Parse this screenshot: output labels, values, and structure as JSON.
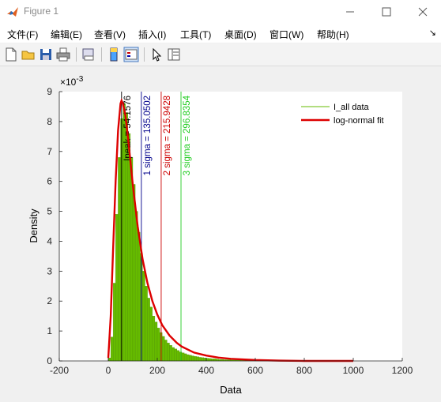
{
  "window": {
    "title": "Figure 1",
    "minimize_icon": "minimize-icon",
    "maximize_icon": "maximize-icon",
    "close_icon": "close-icon"
  },
  "menu": {
    "items": [
      "文件(F)",
      "编辑(E)",
      "查看(V)",
      "插入(I)",
      "工具(T)",
      "桌面(D)",
      "窗口(W)",
      "帮助(H)"
    ],
    "overflow_icon": "dock-arrow-icon"
  },
  "toolbar": {
    "icons": [
      "new-figure-icon",
      "open-file-icon",
      "save-icon",
      "print-icon",
      "print-preview-icon",
      "colorbar-icon",
      "legend-icon",
      "pointer-icon",
      "property-editor-icon"
    ]
  },
  "chart_data": {
    "type": "bar",
    "xlabel": "Data",
    "ylabel": "Density",
    "exponent_label": "×10",
    "exponent_power": "-3",
    "xlim": [
      -200,
      1200
    ],
    "ylim": [
      0,
      9
    ],
    "xticks": [
      "-200",
      "0",
      "200",
      "400",
      "600",
      "800",
      "1000",
      "1200"
    ],
    "yticks": [
      "0",
      "1",
      "2",
      "3",
      "4",
      "5",
      "6",
      "7",
      "8",
      "9"
    ],
    "legend_position": "top-right",
    "series": [
      {
        "name": "I_all data",
        "kind": "histogram",
        "color": "#66bb00",
        "bins": [
          [
            0,
            0.1
          ],
          [
            10,
            0.8
          ],
          [
            20,
            2.6
          ],
          [
            30,
            4.9
          ],
          [
            40,
            6.8
          ],
          [
            50,
            8.1
          ],
          [
            60,
            8.6
          ],
          [
            70,
            8.3
          ],
          [
            80,
            7.6
          ],
          [
            90,
            6.8
          ],
          [
            100,
            5.9
          ],
          [
            110,
            5.0
          ],
          [
            120,
            4.3
          ],
          [
            130,
            3.6
          ],
          [
            140,
            3.0
          ],
          [
            150,
            2.5
          ],
          [
            160,
            2.1
          ],
          [
            170,
            1.8
          ],
          [
            180,
            1.5
          ],
          [
            190,
            1.3
          ],
          [
            200,
            1.1
          ],
          [
            210,
            0.95
          ],
          [
            220,
            0.82
          ],
          [
            230,
            0.7
          ],
          [
            240,
            0.6
          ],
          [
            250,
            0.52
          ],
          [
            260,
            0.45
          ],
          [
            270,
            0.4
          ],
          [
            280,
            0.35
          ],
          [
            290,
            0.3
          ],
          [
            300,
            0.27
          ],
          [
            310,
            0.24
          ],
          [
            320,
            0.21
          ],
          [
            330,
            0.19
          ],
          [
            340,
            0.17
          ],
          [
            350,
            0.15
          ],
          [
            360,
            0.14
          ],
          [
            370,
            0.12
          ],
          [
            380,
            0.11
          ],
          [
            390,
            0.1
          ],
          [
            400,
            0.09
          ],
          [
            410,
            0.08
          ],
          [
            420,
            0.07
          ],
          [
            430,
            0.07
          ],
          [
            440,
            0.06
          ],
          [
            450,
            0.05
          ],
          [
            460,
            0.05
          ],
          [
            470,
            0.04
          ],
          [
            480,
            0.04
          ],
          [
            490,
            0.04
          ],
          [
            500,
            0.03
          ],
          [
            520,
            0.03
          ],
          [
            540,
            0.02
          ],
          [
            560,
            0.02
          ],
          [
            580,
            0.02
          ],
          [
            600,
            0.01
          ],
          [
            650,
            0.01
          ],
          [
            700,
            0.01
          ]
        ]
      },
      {
        "name": "log-normal fit",
        "kind": "line",
        "color": "#dd0000",
        "points": [
          [
            0,
            0.1
          ],
          [
            10,
            1.5
          ],
          [
            20,
            3.8
          ],
          [
            30,
            6.0
          ],
          [
            40,
            7.7
          ],
          [
            50,
            8.6
          ],
          [
            54.16,
            8.7
          ],
          [
            60,
            8.6
          ],
          [
            70,
            8.2
          ],
          [
            80,
            7.5
          ],
          [
            90,
            6.7
          ],
          [
            100,
            5.9
          ],
          [
            120,
            4.5
          ],
          [
            140,
            3.4
          ],
          [
            160,
            2.6
          ],
          [
            180,
            2.0
          ],
          [
            200,
            1.55
          ],
          [
            220,
            1.2
          ],
          [
            250,
            0.85
          ],
          [
            280,
            0.6
          ],
          [
            300,
            0.48
          ],
          [
            350,
            0.28
          ],
          [
            400,
            0.18
          ],
          [
            450,
            0.11
          ],
          [
            500,
            0.07
          ],
          [
            600,
            0.03
          ],
          [
            700,
            0.01
          ],
          [
            800,
            0.0
          ],
          [
            1000,
            0.0
          ]
        ]
      }
    ],
    "vlines": [
      {
        "x": 54.1576,
        "label": "Ipeak = 54.1576",
        "color": "#000000"
      },
      {
        "x": 135.0502,
        "label": "1 sigma = 135.0502",
        "color": "#00008b"
      },
      {
        "x": 215.9428,
        "label": "2 sigma = 215.9428",
        "color": "#cc0000"
      },
      {
        "x": 296.8354,
        "label": "3 sigma = 296.8354",
        "color": "#22cc22"
      }
    ]
  }
}
